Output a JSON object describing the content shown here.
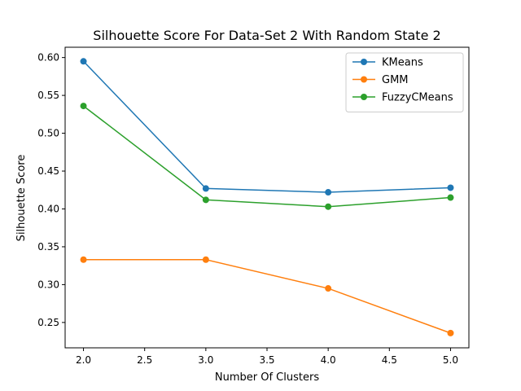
{
  "chart_data": {
    "type": "line",
    "title": "Silhouette Score For Data-Set 2 With Random State 2",
    "xlabel": "Number Of Clusters",
    "ylabel": "Silhouette Score",
    "x": [
      2.0,
      3.0,
      4.0,
      5.0
    ],
    "xlim": [
      1.85,
      5.15
    ],
    "ylim": [
      0.2165,
      0.6136
    ],
    "xticks": [
      "2.0",
      "2.5",
      "3.0",
      "3.5",
      "4.0",
      "4.5",
      "5.0"
    ],
    "yticks": [
      "0.25",
      "0.30",
      "0.35",
      "0.40",
      "0.45",
      "0.50",
      "0.55",
      "0.60"
    ],
    "grid": false,
    "legend_position": "top-right",
    "series": [
      {
        "name": "KMeans",
        "color": "#1f77b4",
        "marker": "circle",
        "values": [
          0.595,
          0.427,
          0.422,
          0.428
        ]
      },
      {
        "name": "GMM",
        "color": "#ff7f0e",
        "marker": "circle",
        "values": [
          0.333,
          0.333,
          0.295,
          0.236
        ]
      },
      {
        "name": "FuzzyCMeans",
        "color": "#2ca02c",
        "marker": "circle",
        "values": [
          0.536,
          0.412,
          0.403,
          0.415
        ]
      }
    ]
  }
}
